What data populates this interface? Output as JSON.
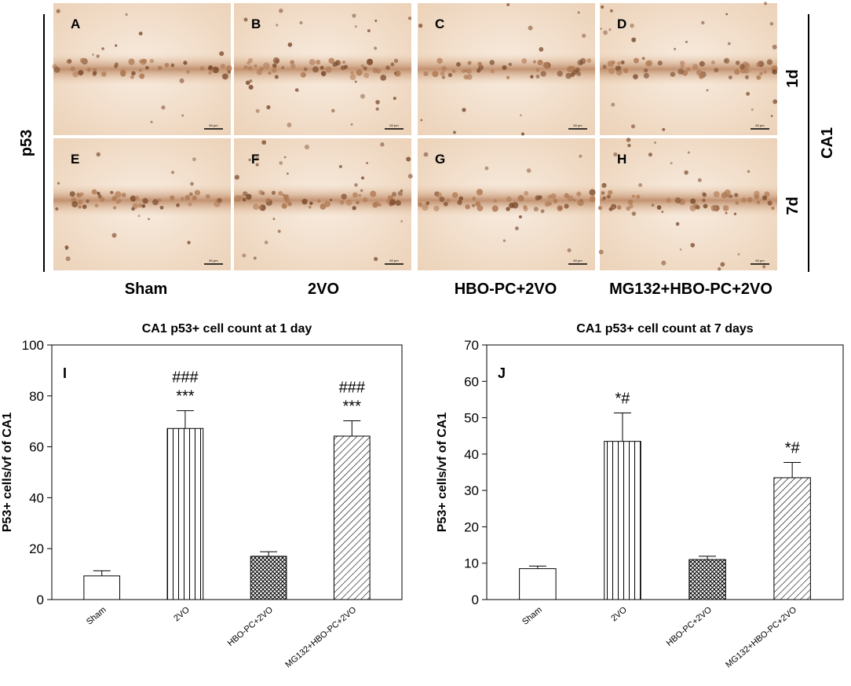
{
  "figure": {
    "row_label": "p53",
    "region_label": "CA1",
    "time_labels": [
      "1d",
      "7d"
    ],
    "group_labels": [
      "Sham",
      "2VO",
      "HBO-PC+2VO",
      "MG132+HBO-PC+2VO"
    ],
    "panel_letters": [
      "A",
      "B",
      "C",
      "D",
      "E",
      "F",
      "G",
      "H"
    ],
    "scale_bar_text": "60 μm",
    "stain_colors": {
      "background": "#f1dcc4",
      "tissue_light": "#f6e7d6",
      "cell_layer": "#b07a55",
      "cell_dark": "#7a4a2c"
    }
  },
  "chart_data": [
    {
      "type": "bar",
      "panel_letter": "I",
      "title": "CA1 p53+ cell count at 1 day",
      "xlabel": "",
      "ylabel": "P53+ cells/vf of CA1",
      "ylim": [
        0,
        100
      ],
      "yticks": [
        0,
        20,
        40,
        60,
        80,
        100
      ],
      "categories": [
        "Sham",
        "2VO",
        "HBO-PC+2VO",
        "MG132+HBO-PC+2VO"
      ],
      "values": [
        9.3,
        67.2,
        17.0,
        64.2
      ],
      "errors": [
        2.0,
        7.0,
        1.8,
        6.0
      ],
      "fill_patterns": [
        "none",
        "vertical",
        "crosshatch",
        "diagonal"
      ],
      "annotations": [
        {
          "category": "2VO",
          "lines": [
            "###",
            "***"
          ]
        },
        {
          "category": "MG132+HBO-PC+2VO",
          "lines": [
            "###",
            "***"
          ]
        }
      ],
      "grid": false,
      "legend": "none"
    },
    {
      "type": "bar",
      "panel_letter": "J",
      "title": "CA1 p53+ cell count at 7 days",
      "xlabel": "",
      "ylabel": "P53+ cells/vf of CA1",
      "ylim": [
        0,
        70
      ],
      "yticks": [
        0,
        10,
        20,
        30,
        40,
        50,
        60,
        70
      ],
      "categories": [
        "Sham",
        "2VO",
        "HBO-PC+2VO",
        "MG132+HBO-PC+2VO"
      ],
      "values": [
        8.5,
        43.5,
        11.0,
        33.5
      ],
      "errors": [
        0.7,
        7.8,
        0.9,
        4.2
      ],
      "fill_patterns": [
        "none",
        "vertical",
        "crosshatch",
        "diagonal"
      ],
      "annotations": [
        {
          "category": "2VO",
          "lines": [
            "*#"
          ]
        },
        {
          "category": "MG132+HBO-PC+2VO",
          "lines": [
            "*#"
          ]
        }
      ],
      "grid": false,
      "legend": "none"
    }
  ]
}
